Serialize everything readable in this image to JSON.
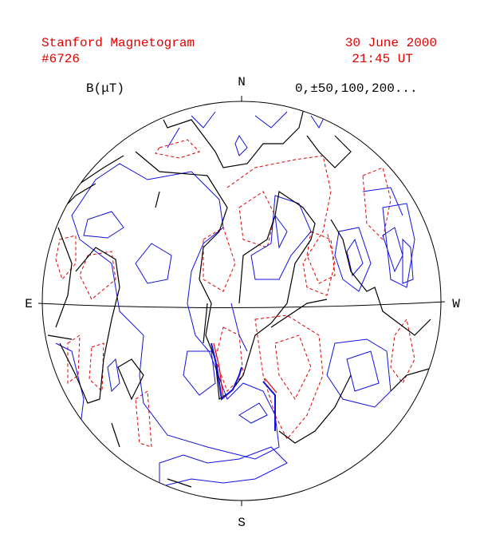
{
  "header": {
    "title": "Stanford Magnetogram",
    "number": "#6726",
    "date": "30 June 2000",
    "time": "21:45 UT"
  },
  "legend": {
    "unit": "B(μT)",
    "levels": "0,±50,100,200..."
  },
  "directions": {
    "north": "N",
    "south": "S",
    "east": "E",
    "west": "W"
  }
}
